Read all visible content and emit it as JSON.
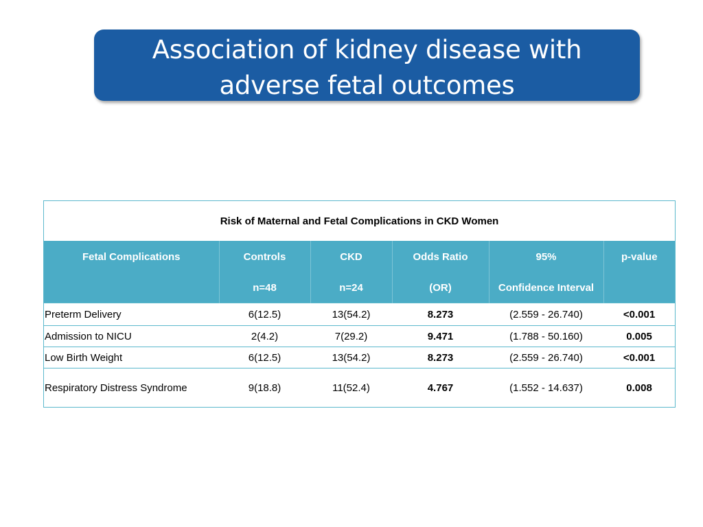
{
  "slide": {
    "title_line1": "Association of kidney disease with",
    "title_line2": "adverse fetal outcomes"
  },
  "table": {
    "caption": "Risk of Maternal and Fetal Complications in CKD Women",
    "header_row1": [
      "Fetal Complications",
      "Controls",
      "CKD",
      "Odds Ratio",
      "95%",
      "p-value"
    ],
    "header_row2": [
      "",
      "n=48",
      "n=24",
      "(OR)",
      "Confidence Interval",
      ""
    ],
    "rows": [
      [
        "Preterm Delivery",
        "6(12.5)",
        "13(54.2)",
        "8.273",
        "(2.559 - 26.740)",
        "<0.001"
      ],
      [
        "Admission to NICU",
        "2(4.2)",
        "7(29.2)",
        "9.471",
        "(1.788 - 50.160)",
        "0.005"
      ],
      [
        "Low Birth Weight",
        "6(12.5)",
        "13(54.2)",
        "8.273",
        "(2.559 - 26.740)",
        "<0.001"
      ],
      [
        "Respiratory Distress Syndrome",
        "9(18.8)",
        "11(52.4)",
        "4.767",
        "(1.552 - 14.637)",
        "0.008"
      ]
    ]
  },
  "colors": {
    "title_background": "#1b5ca3",
    "header_background": "#4bacc6",
    "border": "#5bb8cc"
  }
}
